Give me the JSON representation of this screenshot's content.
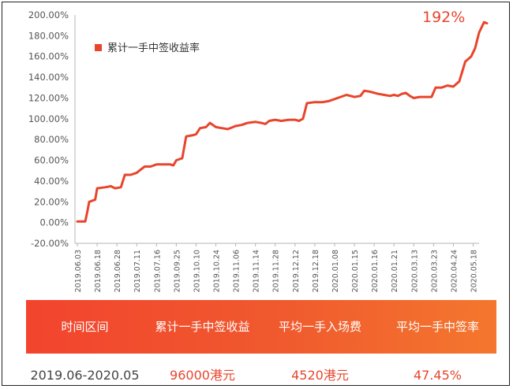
{
  "chart_data": {
    "type": "line",
    "title": "",
    "xlabel": "",
    "ylabel": "",
    "ylim": [
      -20,
      200
    ],
    "yticks": [
      "-20.00%",
      "0.00%",
      "20.00%",
      "40.00%",
      "60.00%",
      "80.00%",
      "100.00%",
      "120.00%",
      "140.00%",
      "160.00%",
      "180.00%",
      "200.00%"
    ],
    "xtick_labels": [
      "2019.06.03",
      "2019.06.18",
      "2019.06.28",
      "2019.07.11",
      "2019.07.16",
      "2019.09.25",
      "2019.10.10",
      "2019.10.24",
      "2019.11.06",
      "2019.11.14",
      "2019.11.28",
      "2019.12.12",
      "2019.12.18",
      "2020.01.08",
      "2020.01.15",
      "2020.01.16",
      "2020.01.21",
      "2020.03.13",
      "2020.03.23",
      "2020.04.24",
      "2020.05.18"
    ],
    "legend": "top-left",
    "grid": false,
    "series": [
      {
        "name": "累计一手中签收益率",
        "color": "#e8452c",
        "points": [
          [
            0,
            1
          ],
          [
            0.4,
            1
          ],
          [
            0.5,
            10
          ],
          [
            0.6,
            20
          ],
          [
            0.9,
            22
          ],
          [
            1.0,
            33
          ],
          [
            1.4,
            34
          ],
          [
            1.7,
            35
          ],
          [
            1.9,
            33
          ],
          [
            2.2,
            34
          ],
          [
            2.4,
            46
          ],
          [
            2.7,
            46
          ],
          [
            3.0,
            48
          ],
          [
            3.2,
            51
          ],
          [
            3.4,
            54
          ],
          [
            3.7,
            54
          ],
          [
            4.0,
            56
          ],
          [
            4.3,
            56
          ],
          [
            4.5,
            56
          ],
          [
            4.7,
            56
          ],
          [
            4.85,
            55
          ],
          [
            5.0,
            60
          ],
          [
            5.3,
            62
          ],
          [
            5.5,
            83
          ],
          [
            5.8,
            84
          ],
          [
            6.0,
            85
          ],
          [
            6.2,
            91
          ],
          [
            6.5,
            92
          ],
          [
            6.7,
            96
          ],
          [
            7.0,
            92
          ],
          [
            7.3,
            91
          ],
          [
            7.6,
            90
          ],
          [
            8.0,
            93
          ],
          [
            8.3,
            94
          ],
          [
            8.6,
            96
          ],
          [
            9.0,
            97
          ],
          [
            9.3,
            96
          ],
          [
            9.5,
            95
          ],
          [
            9.7,
            98
          ],
          [
            10.0,
            99
          ],
          [
            10.3,
            98
          ],
          [
            10.7,
            99
          ],
          [
            11.0,
            99
          ],
          [
            11.2,
            98
          ],
          [
            11.4,
            100
          ],
          [
            11.6,
            115
          ],
          [
            12.0,
            116
          ],
          [
            12.4,
            116
          ],
          [
            12.7,
            117
          ],
          [
            13.0,
            119
          ],
          [
            13.3,
            121
          ],
          [
            13.6,
            123
          ],
          [
            14.0,
            121
          ],
          [
            14.3,
            122
          ],
          [
            14.5,
            127
          ],
          [
            14.8,
            126
          ],
          [
            15.2,
            124
          ],
          [
            15.5,
            123
          ],
          [
            15.8,
            122
          ],
          [
            16.0,
            123
          ],
          [
            16.2,
            122
          ],
          [
            16.4,
            124
          ],
          [
            16.6,
            125
          ],
          [
            16.8,
            122
          ],
          [
            17.0,
            120
          ],
          [
            17.3,
            121
          ],
          [
            17.6,
            121
          ],
          [
            17.9,
            121
          ],
          [
            18.1,
            130
          ],
          [
            18.4,
            130
          ],
          [
            18.7,
            132
          ],
          [
            19.0,
            131
          ],
          [
            19.3,
            136
          ],
          [
            19.6,
            155
          ],
          [
            19.9,
            160
          ],
          [
            20.1,
            168
          ],
          [
            20.3,
            183
          ],
          [
            20.55,
            193
          ],
          [
            20.7,
            192
          ]
        ]
      }
    ],
    "annotations": [
      "192%"
    ]
  },
  "summary": {
    "headers": [
      "时间区间",
      "累计一手中签收益",
      "平均一手入场费",
      "平均一手中签率"
    ],
    "values": [
      "2019.06-2020.05",
      "96000港元",
      "4520港元",
      "47.45%"
    ]
  },
  "colors": {
    "line": "#e8452c",
    "axis": "#b5b5b5",
    "tick_text": "#555555"
  }
}
